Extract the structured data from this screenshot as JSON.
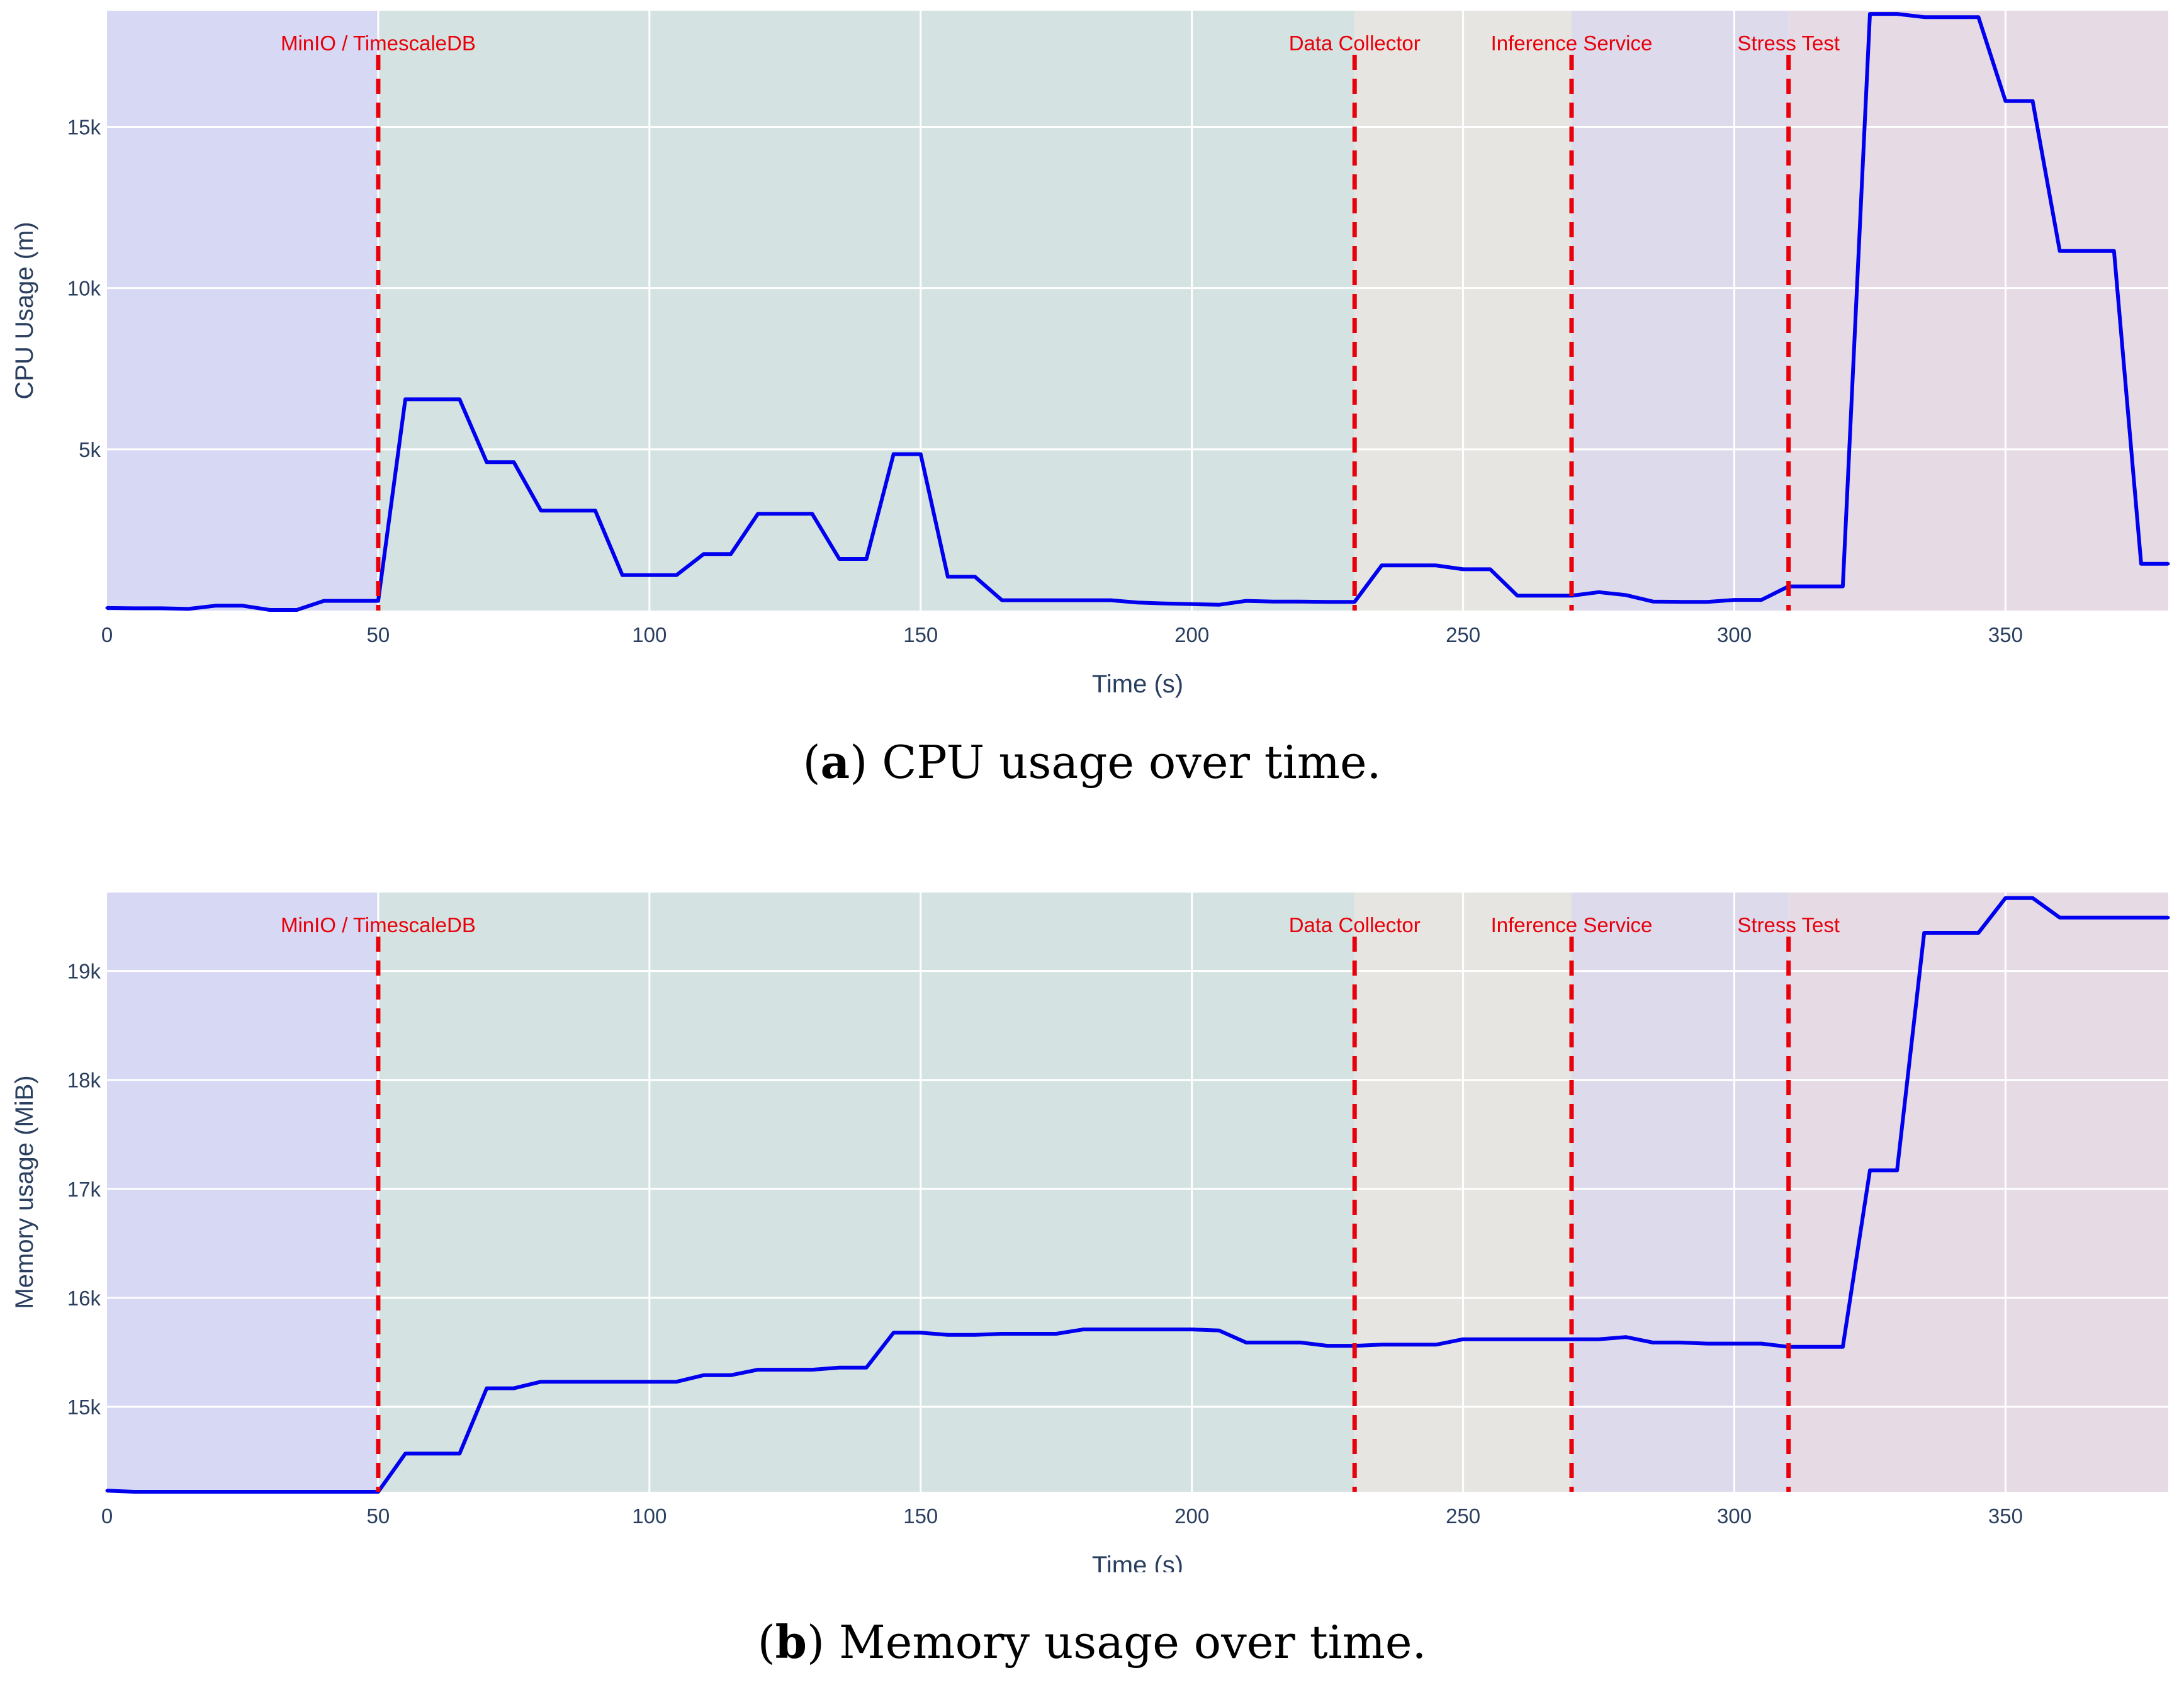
{
  "chart_data": [
    {
      "type": "line",
      "caption_letter": "a",
      "caption_text": "CPU usage over time.",
      "xlabel": "Time (s)",
      "ylabel": "CPU Usage (m)",
      "xlim": [
        0,
        380
      ],
      "ylim": [
        0,
        18600
      ],
      "x_ticks": [
        0,
        50,
        100,
        150,
        200,
        250,
        300,
        350
      ],
      "y_ticks": [
        {
          "value": 5000,
          "label": "5k"
        },
        {
          "value": 10000,
          "label": "10k"
        },
        {
          "value": 15000,
          "label": "15k"
        }
      ],
      "grid": true,
      "line_color": "#0000ee",
      "regions": [
        {
          "x0": 0,
          "x1": 50,
          "color": "#d6d8f4"
        },
        {
          "x0": 50,
          "x1": 230,
          "color": "#d4e3e1"
        },
        {
          "x0": 230,
          "x1": 270,
          "color": "#e6e5e1"
        },
        {
          "x0": 270,
          "x1": 310,
          "color": "#dddaec"
        },
        {
          "x0": 310,
          "x1": 380,
          "color": "#e6dae5"
        }
      ],
      "events": [
        {
          "x": 50,
          "label": "MinIO / TimescaleDB"
        },
        {
          "x": 230,
          "label": "Data Collector"
        },
        {
          "x": 270,
          "label": "Inference Service"
        },
        {
          "x": 310,
          "label": "Stress Test"
        }
      ],
      "event_color": "#e8000b",
      "series": [
        {
          "x": [
            0,
            5,
            10,
            15,
            20,
            25,
            30,
            35,
            40,
            45,
            50,
            55,
            60,
            65,
            70,
            75,
            80,
            85,
            90,
            95,
            100,
            105,
            110,
            115,
            120,
            125,
            130,
            135,
            140,
            145,
            150,
            155,
            160,
            165,
            170,
            175,
            180,
            185,
            190,
            195,
            200,
            205,
            210,
            215,
            220,
            225,
            230,
            235,
            240,
            245,
            250,
            255,
            260,
            265,
            270,
            275,
            280,
            285,
            290,
            295,
            300,
            305,
            310,
            315,
            320,
            325,
            330,
            335,
            340,
            345,
            350,
            355,
            360,
            365,
            370,
            375,
            380
          ],
          "y": [
            80,
            70,
            70,
            50,
            150,
            150,
            20,
            20,
            300,
            300,
            300,
            6550,
            6550,
            6550,
            4600,
            4600,
            3100,
            3100,
            3100,
            1100,
            1100,
            1100,
            1750,
            1750,
            3000,
            3000,
            3000,
            1600,
            1600,
            4850,
            4850,
            1050,
            1050,
            320,
            320,
            320,
            320,
            320,
            250,
            220,
            200,
            180,
            300,
            280,
            280,
            270,
            270,
            1400,
            1400,
            1400,
            1280,
            1280,
            460,
            460,
            460,
            570,
            480,
            280,
            270,
            270,
            330,
            330,
            750,
            750,
            750,
            18500,
            18500,
            18400,
            18400,
            18400,
            15800,
            15800,
            11150,
            11150,
            11150,
            1450,
            1450
          ]
        }
      ]
    },
    {
      "type": "line",
      "caption_letter": "b",
      "caption_text": "Memory usage over time.",
      "xlabel": "Time (s)",
      "ylabel": "Memory usage (MiB)",
      "xlim": [
        0,
        380
      ],
      "ylim": [
        14220,
        19720
      ],
      "x_ticks": [
        0,
        50,
        100,
        150,
        200,
        250,
        300,
        350
      ],
      "y_ticks": [
        {
          "value": 15000,
          "label": "15k"
        },
        {
          "value": 16000,
          "label": "16k"
        },
        {
          "value": 17000,
          "label": "17k"
        },
        {
          "value": 18000,
          "label": "18k"
        },
        {
          "value": 19000,
          "label": "19k"
        }
      ],
      "grid": true,
      "line_color": "#0000ee",
      "regions": [
        {
          "x0": 0,
          "x1": 50,
          "color": "#d6d8f4"
        },
        {
          "x0": 50,
          "x1": 230,
          "color": "#d4e3e1"
        },
        {
          "x0": 230,
          "x1": 270,
          "color": "#e6e5e1"
        },
        {
          "x0": 270,
          "x1": 310,
          "color": "#dddaec"
        },
        {
          "x0": 310,
          "x1": 380,
          "color": "#e6dae5"
        }
      ],
      "events": [
        {
          "x": 50,
          "label": "MinIO / TimescaleDB"
        },
        {
          "x": 230,
          "label": "Data Collector"
        },
        {
          "x": 270,
          "label": "Inference Service"
        },
        {
          "x": 310,
          "label": "Stress Test"
        }
      ],
      "event_color": "#e8000b",
      "series": [
        {
          "x": [
            0,
            5,
            10,
            15,
            20,
            25,
            30,
            35,
            40,
            45,
            50,
            55,
            60,
            65,
            70,
            75,
            80,
            85,
            90,
            95,
            100,
            105,
            110,
            115,
            120,
            125,
            130,
            135,
            140,
            145,
            150,
            155,
            160,
            165,
            170,
            175,
            180,
            185,
            190,
            195,
            200,
            205,
            210,
            215,
            220,
            225,
            230,
            235,
            240,
            245,
            250,
            255,
            260,
            265,
            270,
            275,
            280,
            285,
            290,
            295,
            300,
            305,
            310,
            315,
            320,
            325,
            330,
            335,
            340,
            345,
            350,
            355,
            360,
            365,
            370,
            375,
            380
          ],
          "y": [
            14230,
            14220,
            14220,
            14220,
            14220,
            14220,
            14220,
            14220,
            14220,
            14220,
            14220,
            14570,
            14570,
            14570,
            15170,
            15170,
            15230,
            15230,
            15230,
            15230,
            15230,
            15230,
            15290,
            15290,
            15340,
            15340,
            15340,
            15360,
            15360,
            15680,
            15680,
            15660,
            15660,
            15670,
            15670,
            15670,
            15710,
            15710,
            15710,
            15710,
            15710,
            15700,
            15590,
            15590,
            15590,
            15560,
            15560,
            15570,
            15570,
            15570,
            15620,
            15620,
            15620,
            15620,
            15620,
            15620,
            15640,
            15590,
            15590,
            15580,
            15580,
            15580,
            15550,
            15550,
            15550,
            17170,
            17170,
            19350,
            19350,
            19350,
            19670,
            19670,
            19490,
            19490,
            19490,
            19490,
            19490
          ]
        }
      ]
    }
  ]
}
